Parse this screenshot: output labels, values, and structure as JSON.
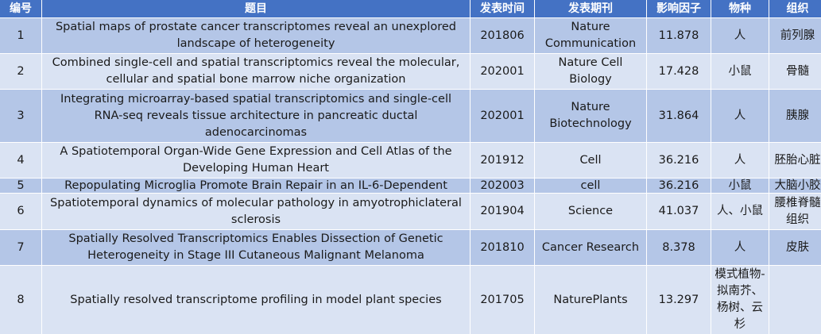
{
  "table": {
    "header": [
      "编号",
      "题目",
      "发表时间",
      "发表期刊",
      "影响因子",
      "物种",
      "组织"
    ],
    "rows": [
      [
        "1",
        "Spatial maps of prostate cancer transcriptomes reveal an unexplored landscape of heterogeneity",
        "201806",
        "Nature Communication",
        "11.878",
        "人",
        "前列腺"
      ],
      [
        "2",
        "Combined single-cell and spatial transcriptomics reveal the molecular, cellular and spatial bone marrow niche organization",
        "202001",
        "Nature Cell Biology",
        "17.428",
        "小鼠",
        "骨髓"
      ],
      [
        "3",
        "Integrating microarray-based spatial transcriptomics and single-cell RNA-seq reveals tissue architecture in pancreatic ductal adenocarcinomas",
        "202001",
        "Nature Biotechnology",
        "31.864",
        "人",
        "胰腺"
      ],
      [
        "4",
        "A Spatiotemporal Organ-Wide Gene Expression and Cell Atlas of the Developing Human Heart",
        "201912",
        "Cell",
        "36.216",
        "人",
        "胚胎心脏"
      ],
      [
        "5",
        "Repopulating Microglia Promote Brain Repair in an IL-6-Dependent",
        "202003",
        "cell",
        "36.216",
        "小鼠",
        "大脑小胶"
      ],
      [
        "6",
        "Spatiotemporal dynamics of molecular pathology in amyotrophiclateral sclerosis",
        "201904",
        "Science",
        "41.037",
        "人、小鼠",
        "腰椎脊髓组织"
      ],
      [
        "7",
        "Spatially Resolved Transcriptomics Enables Dissection of Genetic Heterogeneity in Stage III Cutaneous Malignant Melanoma",
        "201810",
        "Cancer Research",
        "8.378",
        "人",
        "皮肤"
      ],
      [
        "8",
        "Spatially resolved transcriptome profiling in model plant species",
        "201705",
        "NaturePlants",
        "13.297",
        "模式植物-拟南芥、杨树、云杉",
        ""
      ]
    ]
  }
}
